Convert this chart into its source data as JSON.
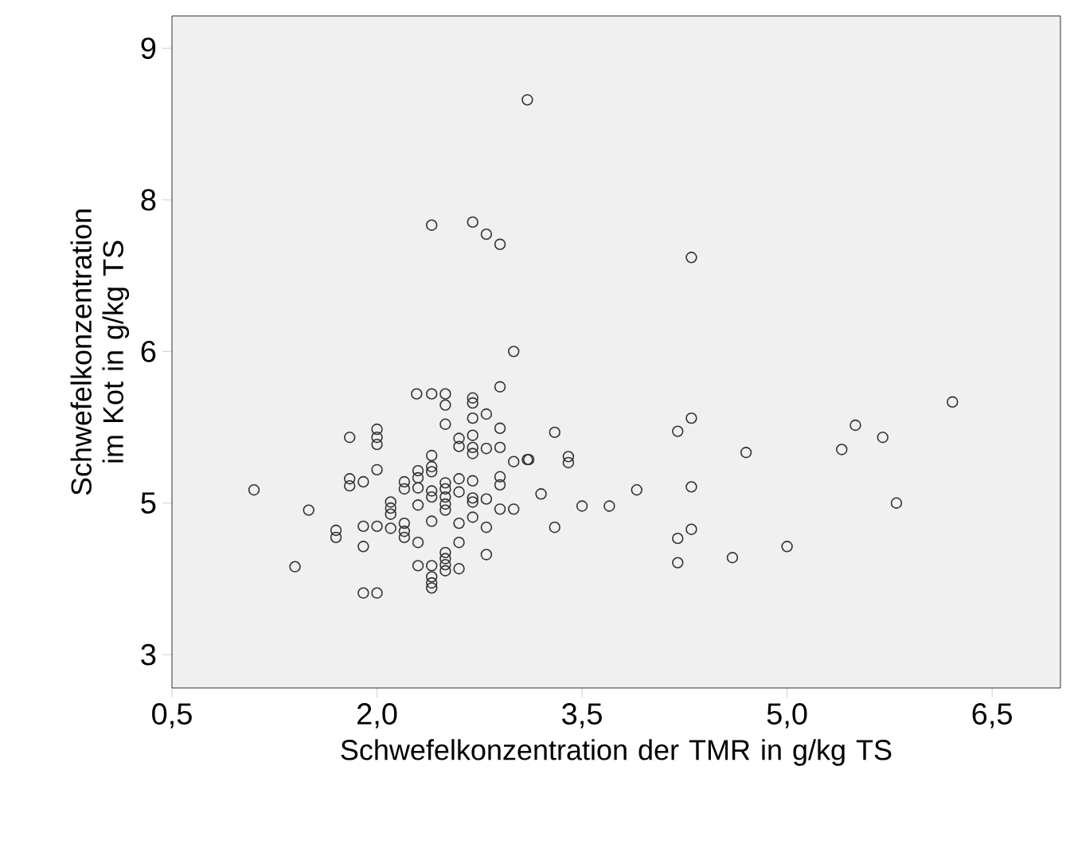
{
  "chart_data": {
    "type": "scatter",
    "xlabel": "Schwefelkonzentration der TMR in g/kg TS",
    "ylabel": "Schwefelkonzentration im Kot in g/kg TS",
    "marker": "circle",
    "xlim": [
      0.5,
      7.0
    ],
    "ylim": [
      2.67,
      9.32
    ],
    "xticks": [
      {
        "value": 0.5,
        "label": "0,5"
      },
      {
        "value": 2.0,
        "label": "2,0"
      },
      {
        "value": 3.5,
        "label": "3,5"
      },
      {
        "value": 5.0,
        "label": "5,0"
      },
      {
        "value": 6.5,
        "label": "6,5"
      }
    ],
    "yticks": [
      {
        "value": 3,
        "label": "3"
      },
      {
        "value": 4.5,
        "label": "5"
      },
      {
        "value": 6,
        "label": "6"
      },
      {
        "value": 7.5,
        "label": "8"
      },
      {
        "value": 9,
        "label": "9"
      }
    ],
    "series": [
      {
        "color": "#333333",
        "x": [
          3.1,
          2.4,
          2.7,
          2.8,
          2.9,
          4.3,
          3.0,
          2.9,
          3.3,
          3.11,
          3.4,
          3.4,
          3.2,
          3.3,
          3.5,
          3.7,
          3.9,
          4.2,
          4.3,
          4.3,
          4.3,
          4.2,
          4.2,
          4.6,
          4.7,
          5.0,
          5.4,
          5.5,
          5.7,
          5.8,
          6.21,
          1.1,
          1.5,
          1.4,
          1.7,
          1.7,
          1.9,
          2.0,
          1.9,
          1.9,
          2.0,
          1.8,
          1.8,
          1.8,
          1.9,
          2.0,
          2.0,
          2.0,
          2.0,
          2.1,
          2.1,
          2.1,
          2.1,
          2.2,
          2.2,
          2.2,
          2.2,
          2.2,
          2.3,
          2.3,
          2.3,
          2.3,
          2.3,
          2.3,
          2.4,
          2.4,
          2.4,
          2.4,
          2.4,
          2.4,
          2.4,
          2.4,
          2.4,
          2.4,
          2.5,
          2.5,
          2.5,
          2.5,
          2.5,
          2.5,
          2.5,
          2.5,
          2.5,
          2.5,
          2.6,
          2.6,
          2.6,
          2.6,
          2.6,
          2.6,
          2.6,
          2.7,
          2.7,
          2.7,
          2.7,
          2.7,
          2.7,
          2.7,
          2.7,
          2.7,
          2.8,
          2.8,
          2.8,
          2.8,
          2.8,
          2.9,
          2.9,
          2.9,
          2.9,
          2.9,
          3.0,
          3.0,
          3.1,
          2.29,
          2.4,
          2.5,
          2.7,
          2.5
        ],
        "values": [
          8.49,
          7.25,
          7.28,
          7.16,
          7.06,
          6.93,
          6.0,
          5.65,
          5.2,
          4.93,
          4.96,
          4.9,
          4.59,
          4.26,
          4.47,
          4.47,
          4.63,
          5.21,
          5.34,
          4.66,
          4.24,
          4.15,
          3.91,
          3.96,
          5.0,
          4.07,
          5.03,
          5.27,
          5.15,
          4.5,
          5.5,
          4.63,
          4.43,
          3.87,
          4.23,
          4.16,
          4.27,
          4.27,
          4.07,
          3.61,
          3.61,
          5.15,
          4.74,
          4.67,
          4.71,
          4.83,
          5.23,
          5.15,
          5.08,
          4.51,
          4.45,
          4.39,
          4.25,
          4.71,
          4.64,
          4.3,
          4.22,
          4.16,
          4.82,
          4.75,
          4.65,
          4.48,
          4.11,
          3.88,
          4.97,
          4.86,
          4.81,
          4.62,
          4.56,
          4.32,
          3.88,
          3.77,
          3.71,
          3.66,
          5.28,
          4.7,
          4.64,
          4.56,
          4.49,
          4.43,
          4.01,
          3.95,
          3.89,
          3.83,
          5.14,
          5.06,
          4.74,
          4.61,
          4.3,
          4.11,
          3.85,
          5.49,
          5.34,
          5.17,
          5.05,
          4.99,
          4.72,
          4.55,
          4.51,
          4.36,
          5.38,
          5.04,
          4.54,
          4.26,
          3.99,
          5.24,
          5.05,
          4.76,
          4.68,
          4.44,
          4.91,
          4.44,
          4.93,
          5.58,
          5.58,
          5.58,
          5.54,
          5.47
        ]
      }
    ]
  }
}
